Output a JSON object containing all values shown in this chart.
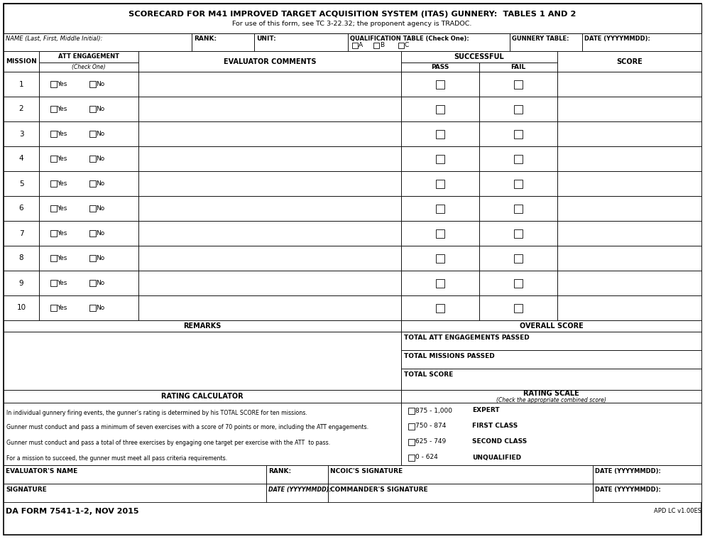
{
  "title_line1": "SCORECARD FOR M41 IMPROVED TARGET ACQUISITION SYSTEM (ITAS) GUNNERY:  TABLES 1 AND 2",
  "title_line2": "For use of this form, see TC 3-22.32; the proponent agency is TRADOC.",
  "missions": [
    1,
    2,
    3,
    4,
    5,
    6,
    7,
    8,
    9,
    10
  ],
  "rating_calculator_lines": [
    "In individual gunnery firing events, the gunner’s rating is determined by his TOTAL SCORE for ten missions.",
    "Gunner must conduct and pass a minimum of seven exercises with a score of 70 points or more, including the ATT engagements.",
    "Gunner must conduct and pass a total of three exercises by engaging one target per exercise with the ATT  to pass.",
    "For a mission to succeed, the gunner must meet all pass criteria requirements."
  ],
  "rating_scale": [
    {
      "range": "875 - 1,000",
      "label": "EXPERT"
    },
    {
      "range": "750 - 874",
      "label": "FIRST CLASS"
    },
    {
      "range": "625 - 749",
      "label": "SECOND CLASS"
    },
    {
      "range": "0 - 624",
      "label": "UNQUALIFIED"
    }
  ],
  "form_id": "DA FORM 7541-1-2, NOV 2015",
  "apd": "APD LC v1.00ES",
  "bg_color": "#ffffff",
  "border_color": "#000000"
}
